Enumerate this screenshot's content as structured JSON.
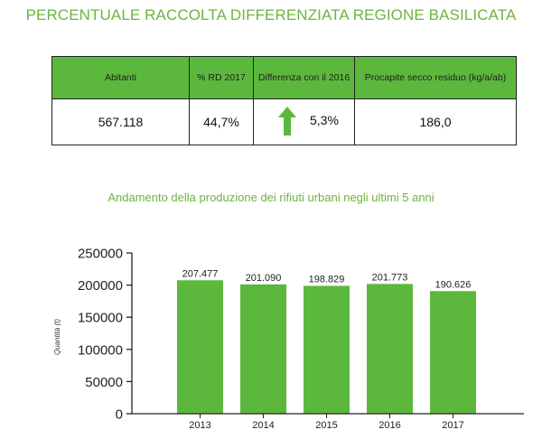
{
  "title": "PERCENTUALE RACCOLTA DIFFERENZIATA REGIONE BASILICATA",
  "table": {
    "headers": [
      "Abitanti",
      "% RD 2017",
      "Differenza con il 2016",
      "Procapite secco residuo (kg/a/ab)"
    ],
    "values": [
      "567.118",
      "44,7%",
      "5,3%",
      "186,0"
    ],
    "diff_direction": "up-arrow-icon"
  },
  "colors": {
    "accent": "#6db33f",
    "bar": "#5cb83c",
    "header_fill": "#5cb83c"
  },
  "subtitle": "Andamento della produzione dei rifiuti urbani negli ultimi 5 anni",
  "chart_data": {
    "type": "bar",
    "categories": [
      "2013",
      "2014",
      "2015",
      "2016",
      "2017"
    ],
    "values": [
      207477,
      201090,
      198829,
      201773,
      190626
    ],
    "data_labels": [
      "207.477",
      "201.090",
      "198.829",
      "201.773",
      "190.626"
    ],
    "ylabel": "Quantità (t)",
    "yticks": [
      "0",
      "50000",
      "100000",
      "150000",
      "200000",
      "250000"
    ],
    "ylim": [
      0,
      250000
    ],
    "grid": false,
    "legend": "none"
  }
}
